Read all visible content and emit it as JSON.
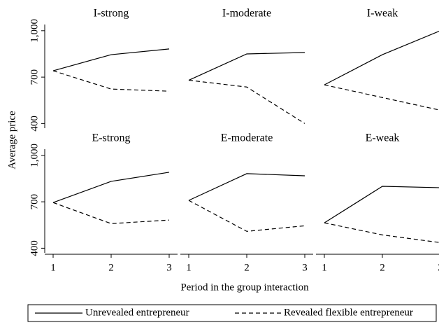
{
  "chart_data": {
    "type": "line",
    "ylabel": "Average price",
    "xlabel": "Period in the group interaction",
    "x": [
      1,
      2,
      3
    ],
    "xticks": [
      1,
      2,
      3
    ],
    "ylim": [
      370,
      1040
    ],
    "yticks": [
      400,
      700,
      {
        "value": 1000,
        "label": "1,000"
      }
    ],
    "series": [
      {
        "name": "Unrevealed entrepreneur",
        "color": "#000000",
        "dash": "none"
      },
      {
        "name": "Revealed flexible entrepreneur",
        "color": "#000000",
        "dash": "6,4"
      }
    ],
    "panels": [
      {
        "title": "I-strong",
        "values": [
          [
            741,
            845,
            882
          ],
          [
            741,
            623,
            609
          ]
        ]
      },
      {
        "title": "I-moderate",
        "values": [
          [
            680,
            850,
            859
          ],
          [
            680,
            636,
            400
          ]
        ]
      },
      {
        "title": "I-weak",
        "values": [
          [
            650,
            845,
            1000
          ],
          [
            650,
            568,
            486
          ]
        ]
      },
      {
        "title": "E-strong",
        "values": [
          [
            695,
            832,
            891
          ],
          [
            695,
            559,
            582
          ]
        ]
      },
      {
        "title": "E-moderate",
        "values": [
          [
            709,
            882,
            868
          ],
          [
            709,
            509,
            545
          ]
        ]
      },
      {
        "title": "E-weak",
        "values": [
          [
            564,
            800,
            791
          ],
          [
            564,
            486,
            436
          ]
        ]
      }
    ]
  }
}
